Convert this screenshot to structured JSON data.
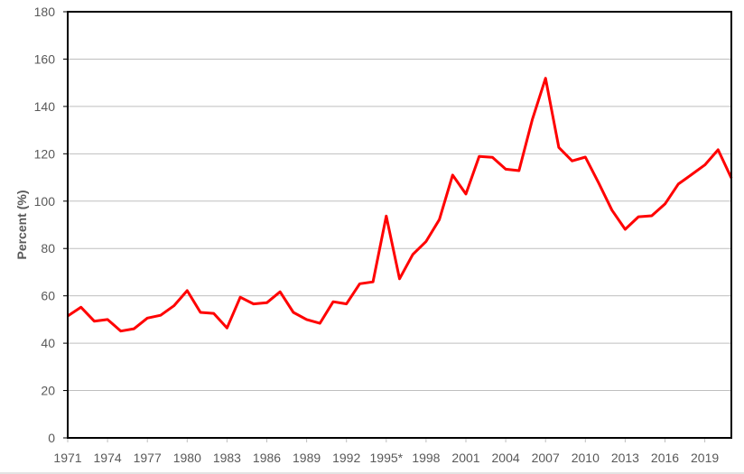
{
  "chart_data": {
    "type": "line",
    "title": "",
    "xlabel": "",
    "ylabel": "Percent (%)",
    "ylim": [
      0,
      180
    ],
    "yticks": [
      0,
      20,
      40,
      60,
      80,
      100,
      120,
      140,
      160,
      180
    ],
    "xtick_labels": [
      "1971",
      "1974",
      "1977",
      "1980",
      "1983",
      "1986",
      "1989",
      "1992",
      "1995*",
      "1998",
      "2001",
      "2004",
      "2007",
      "2010",
      "2013",
      "2016",
      "2019"
    ],
    "grid": true,
    "legend": null,
    "line_color": "#ff0000",
    "x": [
      1971,
      1972,
      1973,
      1974,
      1975,
      1976,
      1977,
      1978,
      1979,
      1980,
      1981,
      1982,
      1983,
      1984,
      1985,
      1986,
      1987,
      1988,
      1989,
      1990,
      1991,
      1992,
      1993,
      1994,
      1995,
      1996,
      1997,
      1998,
      1999,
      2000,
      2001,
      2002,
      2003,
      2004,
      2005,
      2006,
      2007,
      2008,
      2009,
      2010,
      2011,
      2012,
      2013,
      2014,
      2015,
      2016,
      2017,
      2018,
      2019,
      2020,
      2021
    ],
    "series": [
      {
        "name": "Percent",
        "values": [
          51.5,
          55.2,
          49.3,
          50.0,
          45.1,
          46.1,
          50.6,
          51.8,
          55.8,
          62.2,
          53.0,
          52.6,
          46.4,
          59.4,
          56.6,
          57.1,
          61.7,
          53.0,
          50.0,
          48.4,
          57.5,
          56.6,
          65.1,
          65.9,
          93.7,
          67.2,
          77.5,
          83.0,
          92.2,
          111.0,
          103.0,
          118.9,
          118.5,
          113.5,
          112.9,
          134.4,
          151.9,
          122.7,
          117.0,
          118.6,
          107.7,
          96.2,
          88.1,
          93.4,
          93.8,
          98.8,
          107.2,
          111.2,
          115.3,
          121.7,
          109.7
        ]
      }
    ]
  }
}
